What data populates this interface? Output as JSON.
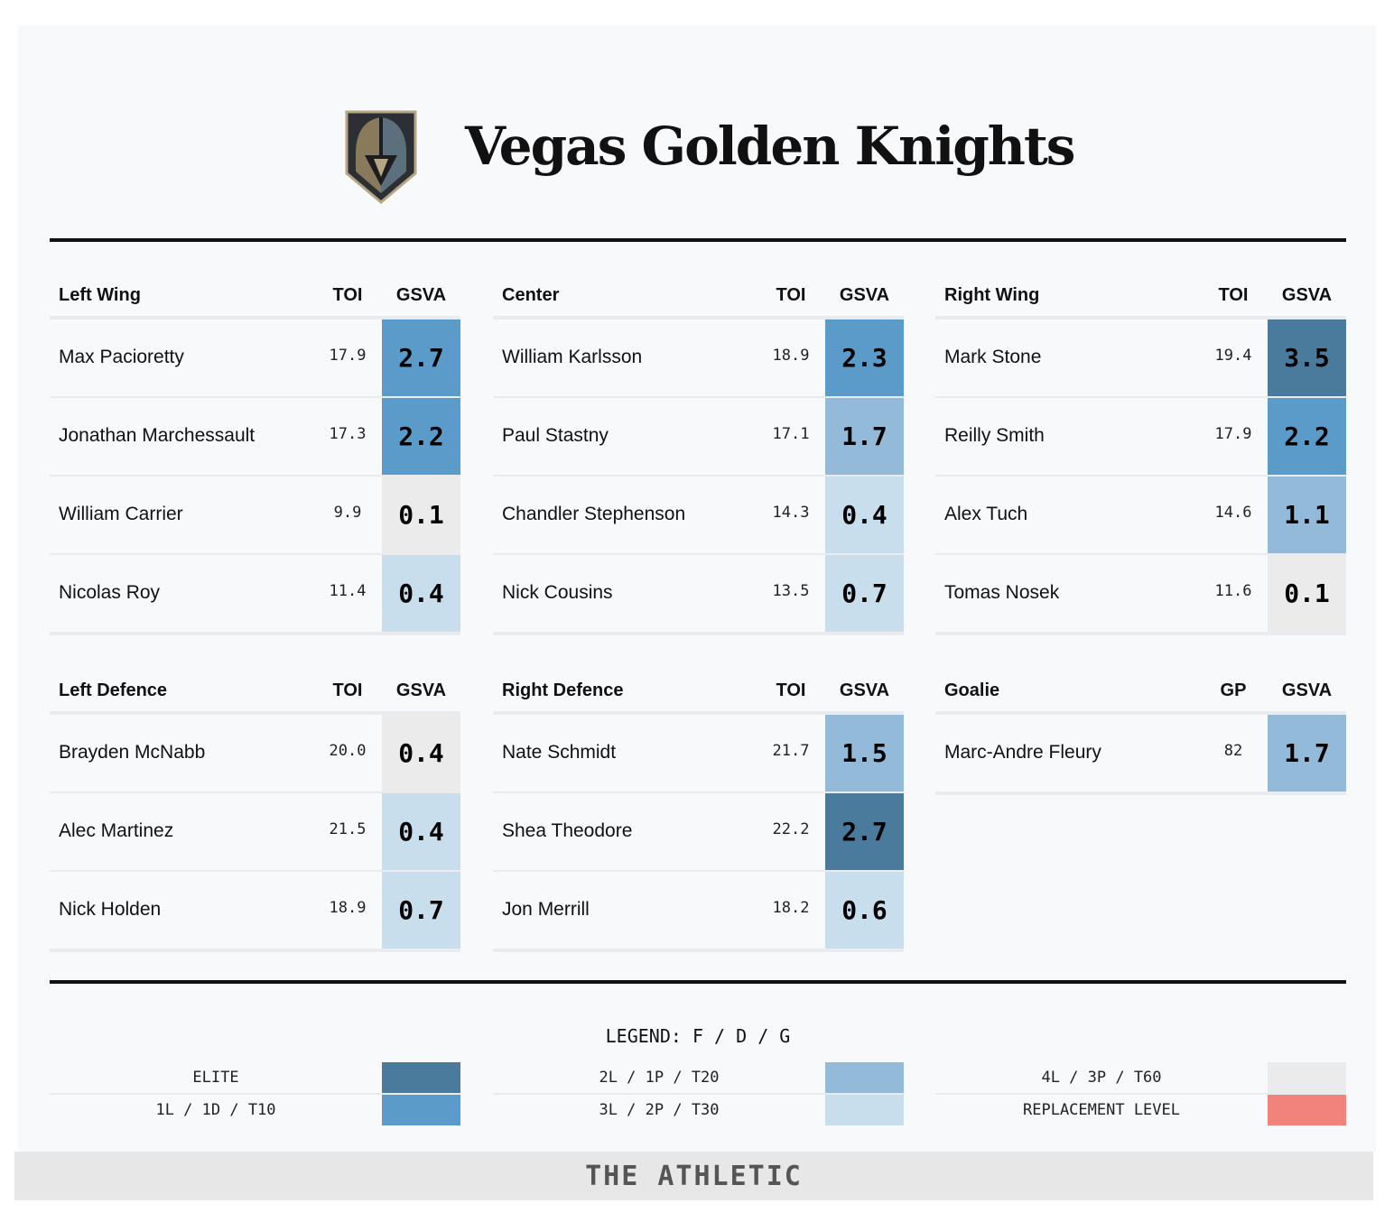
{
  "team": {
    "name": "Vegas Golden Knights",
    "logo_icon": "golden-knights-helmet-icon"
  },
  "colors": {
    "elite": "#4a7a9c",
    "tier1": "#5b9bc9",
    "tier2": "#93bbd9",
    "tier3": "#c9deed",
    "tier4": "#ebebeb",
    "replacement": "#f2837a"
  },
  "groups": [
    {
      "position": "Left Wing",
      "stat_label": "TOI",
      "value_label": "GSVA",
      "players": [
        {
          "name": "Max Pacioretty",
          "stat": "17.9",
          "gsva": "2.7",
          "tier": "tier1"
        },
        {
          "name": "Jonathan Marchessault",
          "stat": "17.3",
          "gsva": "2.2",
          "tier": "tier1"
        },
        {
          "name": "William Carrier",
          "stat": "9.9",
          "gsva": "0.1",
          "tier": "tier4"
        },
        {
          "name": "Nicolas Roy",
          "stat": "11.4",
          "gsva": "0.4",
          "tier": "tier3"
        }
      ]
    },
    {
      "position": "Center",
      "stat_label": "TOI",
      "value_label": "GSVA",
      "players": [
        {
          "name": "William Karlsson",
          "stat": "18.9",
          "gsva": "2.3",
          "tier": "tier1"
        },
        {
          "name": "Paul Stastny",
          "stat": "17.1",
          "gsva": "1.7",
          "tier": "tier2"
        },
        {
          "name": "Chandler Stephenson",
          "stat": "14.3",
          "gsva": "0.4",
          "tier": "tier3"
        },
        {
          "name": "Nick Cousins",
          "stat": "13.5",
          "gsva": "0.7",
          "tier": "tier3"
        }
      ]
    },
    {
      "position": "Right Wing",
      "stat_label": "TOI",
      "value_label": "GSVA",
      "players": [
        {
          "name": "Mark Stone",
          "stat": "19.4",
          "gsva": "3.5",
          "tier": "elite"
        },
        {
          "name": "Reilly Smith",
          "stat": "17.9",
          "gsva": "2.2",
          "tier": "tier1"
        },
        {
          "name": "Alex Tuch",
          "stat": "14.6",
          "gsva": "1.1",
          "tier": "tier2"
        },
        {
          "name": "Tomas Nosek",
          "stat": "11.6",
          "gsva": "0.1",
          "tier": "tier4"
        }
      ]
    },
    {
      "position": "Left Defence",
      "stat_label": "TOI",
      "value_label": "GSVA",
      "players": [
        {
          "name": "Brayden McNabb",
          "stat": "20.0",
          "gsva": "0.4",
          "tier": "tier4"
        },
        {
          "name": "Alec Martinez",
          "stat": "21.5",
          "gsva": "0.4",
          "tier": "tier3"
        },
        {
          "name": "Nick Holden",
          "stat": "18.9",
          "gsva": "0.7",
          "tier": "tier3"
        }
      ]
    },
    {
      "position": "Right Defence",
      "stat_label": "TOI",
      "value_label": "GSVA",
      "players": [
        {
          "name": "Nate Schmidt",
          "stat": "21.7",
          "gsva": "1.5",
          "tier": "tier2"
        },
        {
          "name": "Shea Theodore",
          "stat": "22.2",
          "gsva": "2.7",
          "tier": "elite"
        },
        {
          "name": "Jon Merrill",
          "stat": "18.2",
          "gsva": "0.6",
          "tier": "tier3"
        }
      ]
    },
    {
      "position": "Goalie",
      "stat_label": "GP",
      "value_label": "GSVA",
      "players": [
        {
          "name": "Marc-Andre Fleury",
          "stat": "82",
          "gsva": "1.7",
          "tier": "tier2"
        }
      ]
    }
  ],
  "legend": {
    "title": "LEGEND: F / D / G",
    "items": [
      {
        "label": "ELITE",
        "tier": "elite"
      },
      {
        "label": "1L / 1D / T10",
        "tier": "tier1"
      },
      {
        "label": "2L / 1P / T20",
        "tier": "tier2"
      },
      {
        "label": "3L / 2P / T30",
        "tier": "tier3"
      },
      {
        "label": "4L / 3P / T60",
        "tier": "tier4"
      },
      {
        "label": "REPLACEMENT LEVEL",
        "tier": "replacement"
      }
    ]
  },
  "footer": {
    "brand": "THE ATHLETIC"
  }
}
